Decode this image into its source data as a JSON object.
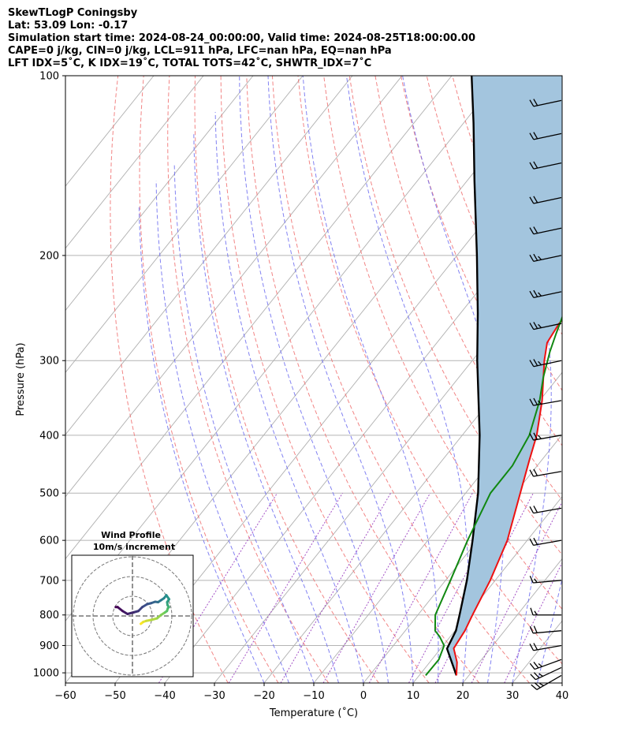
{
  "header": {
    "line1": "SkewTLogP Coningsby",
    "line2": "Lat: 53.09   Lon: -0.17",
    "line3": "Simulation start time: 2024-08-24_00:00:00, Valid time: 2024-08-25T18:00:00.00",
    "line4": "CAPE=0 j/kg, CIN=0 j/kg, LCL=911 hPa, LFC=nan hPa, EQ=nan hPa",
    "line5": "LFT IDX=5˚C, K IDX=19˚C, TOTAL TOTS=42˚C, SHWTR_IDX=7˚C"
  },
  "colors": {
    "temperature": "#ee1111",
    "dewpoint": "#118811",
    "parcel": "#000000",
    "shade": "#a3c5de",
    "dry_adiabat": "#f07070",
    "moist_adiabat": "#6c6cf0",
    "mixing_ratio": "#9a3fc0",
    "isotherm": "#b0b0b0",
    "isobar": "#b4b4b4"
  },
  "chart_data": {
    "type": "line",
    "xlabel": "Temperature (˚C)",
    "ylabel": "Pressure (hPa)",
    "xlim": [
      -60,
      40
    ],
    "ylim": [
      1040,
      100
    ],
    "yscale": "log",
    "xticks": [
      "−60",
      "−50",
      "−40",
      "−30",
      "−20",
      "−10",
      "0",
      "10",
      "20",
      "30",
      "40"
    ],
    "yticks": [
      "100",
      "200",
      "300",
      "400",
      "500",
      "600",
      "700",
      "800",
      "900",
      "1000"
    ],
    "series": [
      {
        "key": "temperature",
        "pressure": [
          1010,
          960,
          910,
          850,
          800,
          700,
          600,
          500,
          440,
          400,
          350,
          300,
          280,
          260,
          250,
          230,
          210,
          200,
          185,
          160,
          140,
          125,
          112,
          105,
          100
        ],
        "values": [
          17.5,
          15.5,
          12.6,
          12.0,
          11.0,
          9.0,
          6.0,
          1.0,
          -2.5,
          -5.0,
          -9.5,
          -15.5,
          -17.8,
          -18.5,
          -18.2,
          -17.8,
          -17.0,
          -17.2,
          -17.0,
          -15.2,
          -12.6,
          -9.6,
          -6.3,
          -5.0,
          -4.5
        ]
      },
      {
        "key": "dewpoint",
        "pressure": [
          1010,
          950,
          900,
          870,
          850,
          800,
          700,
          600,
          500,
          450,
          400,
          350,
          320,
          290,
          270,
          250,
          240,
          230,
          210,
          200,
          190,
          180,
          150,
          125,
          100
        ],
        "values": [
          11.3,
          11.4,
          10.2,
          7.9,
          6.0,
          3.5,
          1.0,
          -2.0,
          -5.0,
          -5.0,
          -6.5,
          -10.0,
          -13.0,
          -15.8,
          -17.5,
          -19.2,
          -19.6,
          -19.0,
          -20.2,
          -23.5,
          -30.0,
          -32.0,
          -33.8,
          -33.2,
          -31.4
        ]
      },
      {
        "key": "parcel",
        "pressure": [
          1010,
          911,
          850,
          800,
          700,
          600,
          500,
          400,
          300,
          250,
          200,
          150,
          120,
          100
        ],
        "values": [
          17.5,
          11.3,
          10.2,
          8.4,
          4.3,
          -1.0,
          -7.5,
          -16.5,
          -29.0,
          -36.5,
          -46.0,
          -58.5,
          -68.0,
          -76.0
        ]
      }
    ],
    "wind_barbs": [
      {
        "pressure": 1010,
        "speed_kt": 25,
        "direction": 240
      },
      {
        "pressure": 980,
        "speed_kt": 25,
        "direction": 245
      },
      {
        "pressure": 950,
        "speed_kt": 25,
        "direction": 250
      },
      {
        "pressure": 900,
        "speed_kt": 20,
        "direction": 260
      },
      {
        "pressure": 850,
        "speed_kt": 20,
        "direction": 265
      },
      {
        "pressure": 800,
        "speed_kt": 15,
        "direction": 270
      },
      {
        "pressure": 700,
        "speed_kt": 15,
        "direction": 265
      },
      {
        "pressure": 600,
        "speed_kt": 20,
        "direction": 260
      },
      {
        "pressure": 530,
        "speed_kt": 20,
        "direction": 260
      },
      {
        "pressure": 460,
        "speed_kt": 20,
        "direction": 260
      },
      {
        "pressure": 400,
        "speed_kt": 25,
        "direction": 260
      },
      {
        "pressure": 350,
        "speed_kt": 25,
        "direction": 260
      },
      {
        "pressure": 300,
        "speed_kt": 25,
        "direction": 258
      },
      {
        "pressure": 260,
        "speed_kt": 25,
        "direction": 258
      },
      {
        "pressure": 230,
        "speed_kt": 25,
        "direction": 258
      },
      {
        "pressure": 200,
        "speed_kt": 25,
        "direction": 258
      },
      {
        "pressure": 180,
        "speed_kt": 20,
        "direction": 258
      },
      {
        "pressure": 160,
        "speed_kt": 20,
        "direction": 258
      },
      {
        "pressure": 140,
        "speed_kt": 20,
        "direction": 258
      },
      {
        "pressure": 125,
        "speed_kt": 20,
        "direction": 258
      },
      {
        "pressure": 110,
        "speed_kt": 20,
        "direction": 258
      }
    ],
    "inset": {
      "title": "Wind Profile",
      "subtitle": "10m/s increment",
      "rings_ms": [
        10,
        20,
        30
      ],
      "hodograph_u": [
        4.2,
        5.5,
        7.0,
        9.5,
        12.5,
        14.5,
        16.5,
        17.5,
        18.0,
        18.5,
        17.8,
        17.6,
        18.6,
        17.2,
        16.0,
        14.5,
        13.0,
        11.5,
        9.5,
        7.5,
        5.0,
        3.0,
        0.5,
        -2.5,
        -5.0,
        -7.5,
        -8.5
      ],
      "hodograph_v": [
        -4.0,
        -3.0,
        -2.5,
        -2.0,
        -1.2,
        0.5,
        1.8,
        2.5,
        4.0,
        4.5,
        5.5,
        7.0,
        8.5,
        10.5,
        9.0,
        8.0,
        7.0,
        7.2,
        6.5,
        6.0,
        4.5,
        2.5,
        1.8,
        1.0,
        2.5,
        4.5,
        4.5
      ]
    }
  }
}
